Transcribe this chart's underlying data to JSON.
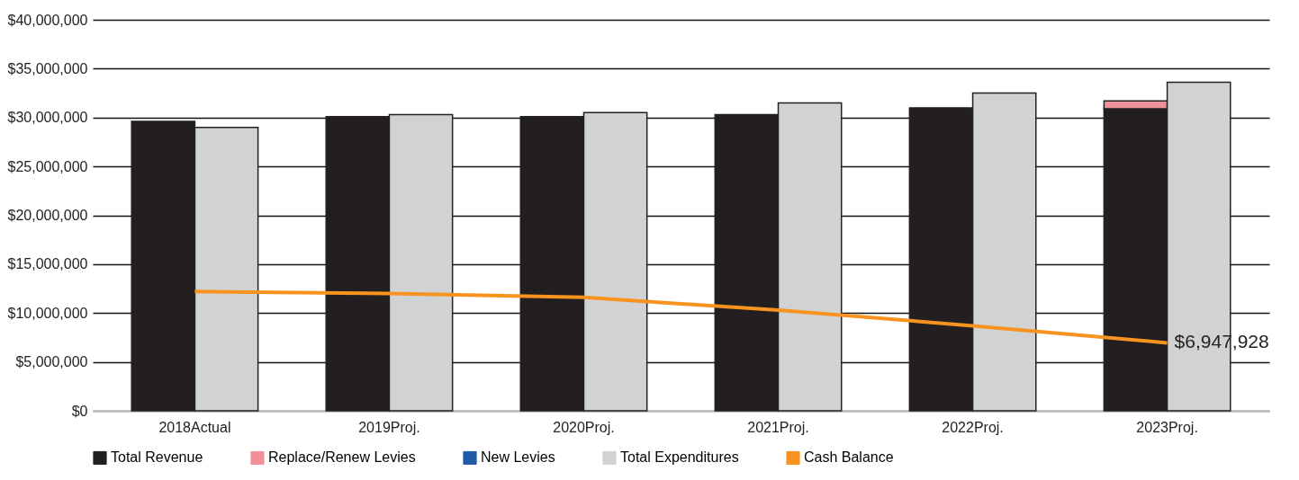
{
  "chart_data": {
    "type": "bar",
    "categories": [
      "2018Actual",
      "2019Proj.",
      "2020Proj.",
      "2021Proj.",
      "2022Proj.",
      "2023Proj."
    ],
    "series": [
      {
        "name": "Total Revenue",
        "color": "#231f20",
        "values": [
          29600000,
          30100000,
          30100000,
          30300000,
          31000000,
          30900000
        ]
      },
      {
        "name": "Replace/Renew Levies",
        "color": "#f0909a",
        "values": [
          null,
          null,
          null,
          null,
          null,
          800000
        ],
        "base": [
          null,
          null,
          null,
          null,
          null,
          30900000
        ]
      },
      {
        "name": "New Levies",
        "color": "#1f5aa8",
        "values": [
          null,
          null,
          null,
          null,
          null,
          null
        ]
      },
      {
        "name": "Total Expenditures",
        "color": "#d0d2d4",
        "values": [
          29000000,
          30300000,
          30500000,
          31500000,
          32500000,
          33600000
        ]
      },
      {
        "name": "Cash Balance",
        "type": "line",
        "color": "#f7931e",
        "values": [
          12200000,
          12000000,
          11600000,
          10300000,
          8700000,
          6947928
        ],
        "value_labels": [
          null,
          null,
          null,
          null,
          null,
          "$6,947,928"
        ]
      }
    ],
    "ylim": [
      0,
      40000000
    ],
    "yticks": [
      {
        "value": 0,
        "label": "$0"
      },
      {
        "value": 5000000,
        "label": "$5,000,000"
      },
      {
        "value": 10000000,
        "label": "$10,000,000"
      },
      {
        "value": 15000000,
        "label": "$15,000,000"
      },
      {
        "value": 20000000,
        "label": "$20,000,000"
      },
      {
        "value": 25000000,
        "label": "$25,000,000"
      },
      {
        "value": 30000000,
        "label": "$30,000,000"
      },
      {
        "value": 35000000,
        "label": "$35,000,000"
      },
      {
        "value": 40000000,
        "label": "$40,000,000"
      }
    ],
    "grid": "y",
    "legend": "bottom"
  }
}
